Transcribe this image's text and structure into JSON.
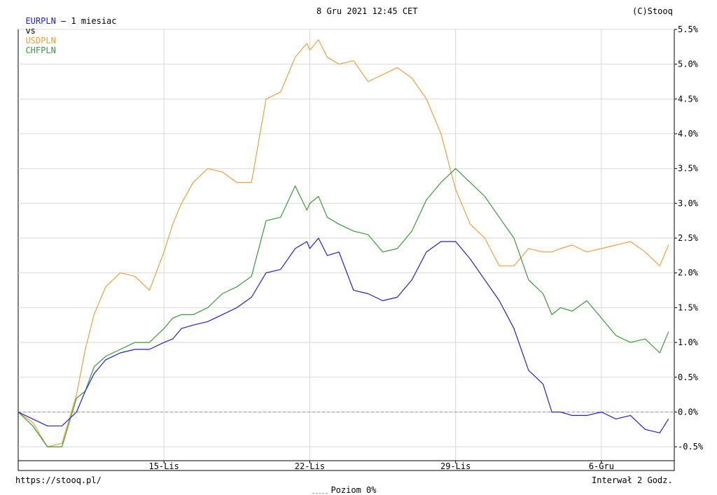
{
  "header": {
    "symbol": "EURPLN",
    "period": " – 1 miesiac",
    "vs_label": "vs",
    "compare_1": "USDPLN",
    "compare_2": "CHFPLN",
    "datetime": "8 Gru 2021 12:45 CET",
    "copyright": "(C)Stooq"
  },
  "footer": {
    "url": "https://stooq.pl/",
    "level_legend": "Poziom 0%",
    "interval": "Interwał 2 Godz."
  },
  "colors": {
    "EURPLN": "#1f1fdc",
    "USDPLN": "#f0a040",
    "CHFPLN": "#3a9a3a",
    "grid": "#d8d8d8",
    "zero_line": "#999999"
  },
  "chart_data": {
    "type": "line",
    "x_unit": "trading day index (0 = 8 Lis 2021)",
    "xlim": [
      0,
      22.5
    ],
    "ylim": [
      -0.7,
      5.5
    ],
    "y_ticks": [
      "5.5%",
      "5.0%",
      "4.5%",
      "4.0%",
      "3.5%",
      "3.0%",
      "2.5%",
      "2.0%",
      "1.5%",
      "1.0%",
      "0.5%",
      "0.0%",
      "-0.5%"
    ],
    "y_tick_values": [
      5.5,
      5.0,
      4.5,
      4.0,
      3.5,
      3.0,
      2.5,
      2.0,
      1.5,
      1.0,
      0.5,
      0.0,
      -0.5
    ],
    "x_ticks": [
      {
        "label": "15-Lis",
        "x": 5
      },
      {
        "label": "22-Lis",
        "x": 10
      },
      {
        "label": "29-Lis",
        "x": 15
      },
      {
        "label": "6-Gru",
        "x": 20
      }
    ],
    "reference_line": {
      "y": 0.0,
      "label": "Poziom 0%"
    },
    "series": [
      {
        "name": "USDPLN",
        "x": [
          0,
          0.5,
          1,
          1.5,
          2,
          2.3,
          2.6,
          3,
          3.5,
          4,
          4.5,
          5,
          5.3,
          5.6,
          6,
          6.5,
          7,
          7.5,
          8,
          8.5,
          9,
          9.5,
          9.9,
          10,
          10.3,
          10.6,
          11,
          11.5,
          12,
          12.5,
          13,
          13.5,
          14,
          14.5,
          15,
          15.5,
          16,
          16.5,
          17,
          17.5,
          18,
          18.3,
          18.6,
          19,
          19.5,
          20,
          20.5,
          21,
          21.5,
          22,
          22.3
        ],
        "values": [
          0.0,
          -0.15,
          -0.5,
          -0.45,
          0.25,
          0.9,
          1.4,
          1.8,
          2.0,
          1.95,
          1.75,
          2.3,
          2.7,
          3.0,
          3.3,
          3.5,
          3.45,
          3.3,
          3.3,
          4.5,
          4.6,
          5.1,
          5.3,
          5.2,
          5.35,
          5.1,
          5.0,
          5.05,
          4.75,
          4.85,
          4.95,
          4.8,
          4.5,
          4.0,
          3.2,
          2.7,
          2.5,
          2.1,
          2.1,
          2.35,
          2.3,
          2.3,
          2.35,
          2.4,
          2.3,
          2.35,
          2.4,
          2.45,
          2.3,
          2.1,
          2.4
        ]
      },
      {
        "name": "CHFPLN",
        "x": [
          0,
          0.5,
          1,
          1.5,
          2,
          2.3,
          2.6,
          3,
          3.5,
          4,
          4.5,
          5,
          5.3,
          5.6,
          6,
          6.5,
          7,
          7.5,
          8,
          8.5,
          9,
          9.5,
          9.9,
          10,
          10.3,
          10.6,
          11,
          11.5,
          12,
          12.5,
          13,
          13.5,
          14,
          14.5,
          15,
          15.5,
          16,
          16.5,
          17,
          17.5,
          18,
          18.3,
          18.6,
          19,
          19.5,
          20,
          20.5,
          21,
          21.5,
          22,
          22.3
        ],
        "values": [
          0.0,
          -0.2,
          -0.5,
          -0.5,
          0.2,
          0.3,
          0.65,
          0.8,
          0.9,
          1.0,
          1.0,
          1.2,
          1.35,
          1.4,
          1.4,
          1.5,
          1.7,
          1.8,
          1.95,
          2.75,
          2.8,
          3.25,
          2.9,
          3.0,
          3.1,
          2.8,
          2.7,
          2.6,
          2.55,
          2.3,
          2.35,
          2.6,
          3.05,
          3.3,
          3.5,
          3.3,
          3.1,
          2.8,
          2.5,
          1.9,
          1.7,
          1.4,
          1.5,
          1.45,
          1.6,
          1.35,
          1.1,
          1.0,
          1.05,
          0.85,
          1.15
        ]
      },
      {
        "name": "EURPLN",
        "x": [
          0,
          0.5,
          1,
          1.5,
          2,
          2.3,
          2.6,
          3,
          3.5,
          4,
          4.5,
          5,
          5.3,
          5.6,
          6,
          6.5,
          7,
          7.5,
          8,
          8.5,
          9,
          9.5,
          9.9,
          10,
          10.3,
          10.6,
          11,
          11.5,
          12,
          12.5,
          13,
          13.5,
          14,
          14.5,
          15,
          15.5,
          16,
          16.5,
          17,
          17.5,
          18,
          18.3,
          18.6,
          19,
          19.5,
          20,
          20.5,
          21,
          21.5,
          22,
          22.3
        ],
        "values": [
          0.0,
          -0.1,
          -0.2,
          -0.2,
          0.0,
          0.3,
          0.55,
          0.75,
          0.85,
          0.9,
          0.9,
          1.0,
          1.05,
          1.2,
          1.25,
          1.3,
          1.4,
          1.5,
          1.65,
          2.0,
          2.05,
          2.35,
          2.45,
          2.35,
          2.5,
          2.25,
          2.3,
          1.75,
          1.7,
          1.6,
          1.65,
          1.9,
          2.3,
          2.45,
          2.45,
          2.2,
          1.9,
          1.6,
          1.2,
          0.6,
          0.4,
          0.0,
          0.0,
          -0.05,
          -0.05,
          0.0,
          -0.1,
          -0.05,
          -0.25,
          -0.3,
          -0.1
        ]
      }
    ]
  }
}
